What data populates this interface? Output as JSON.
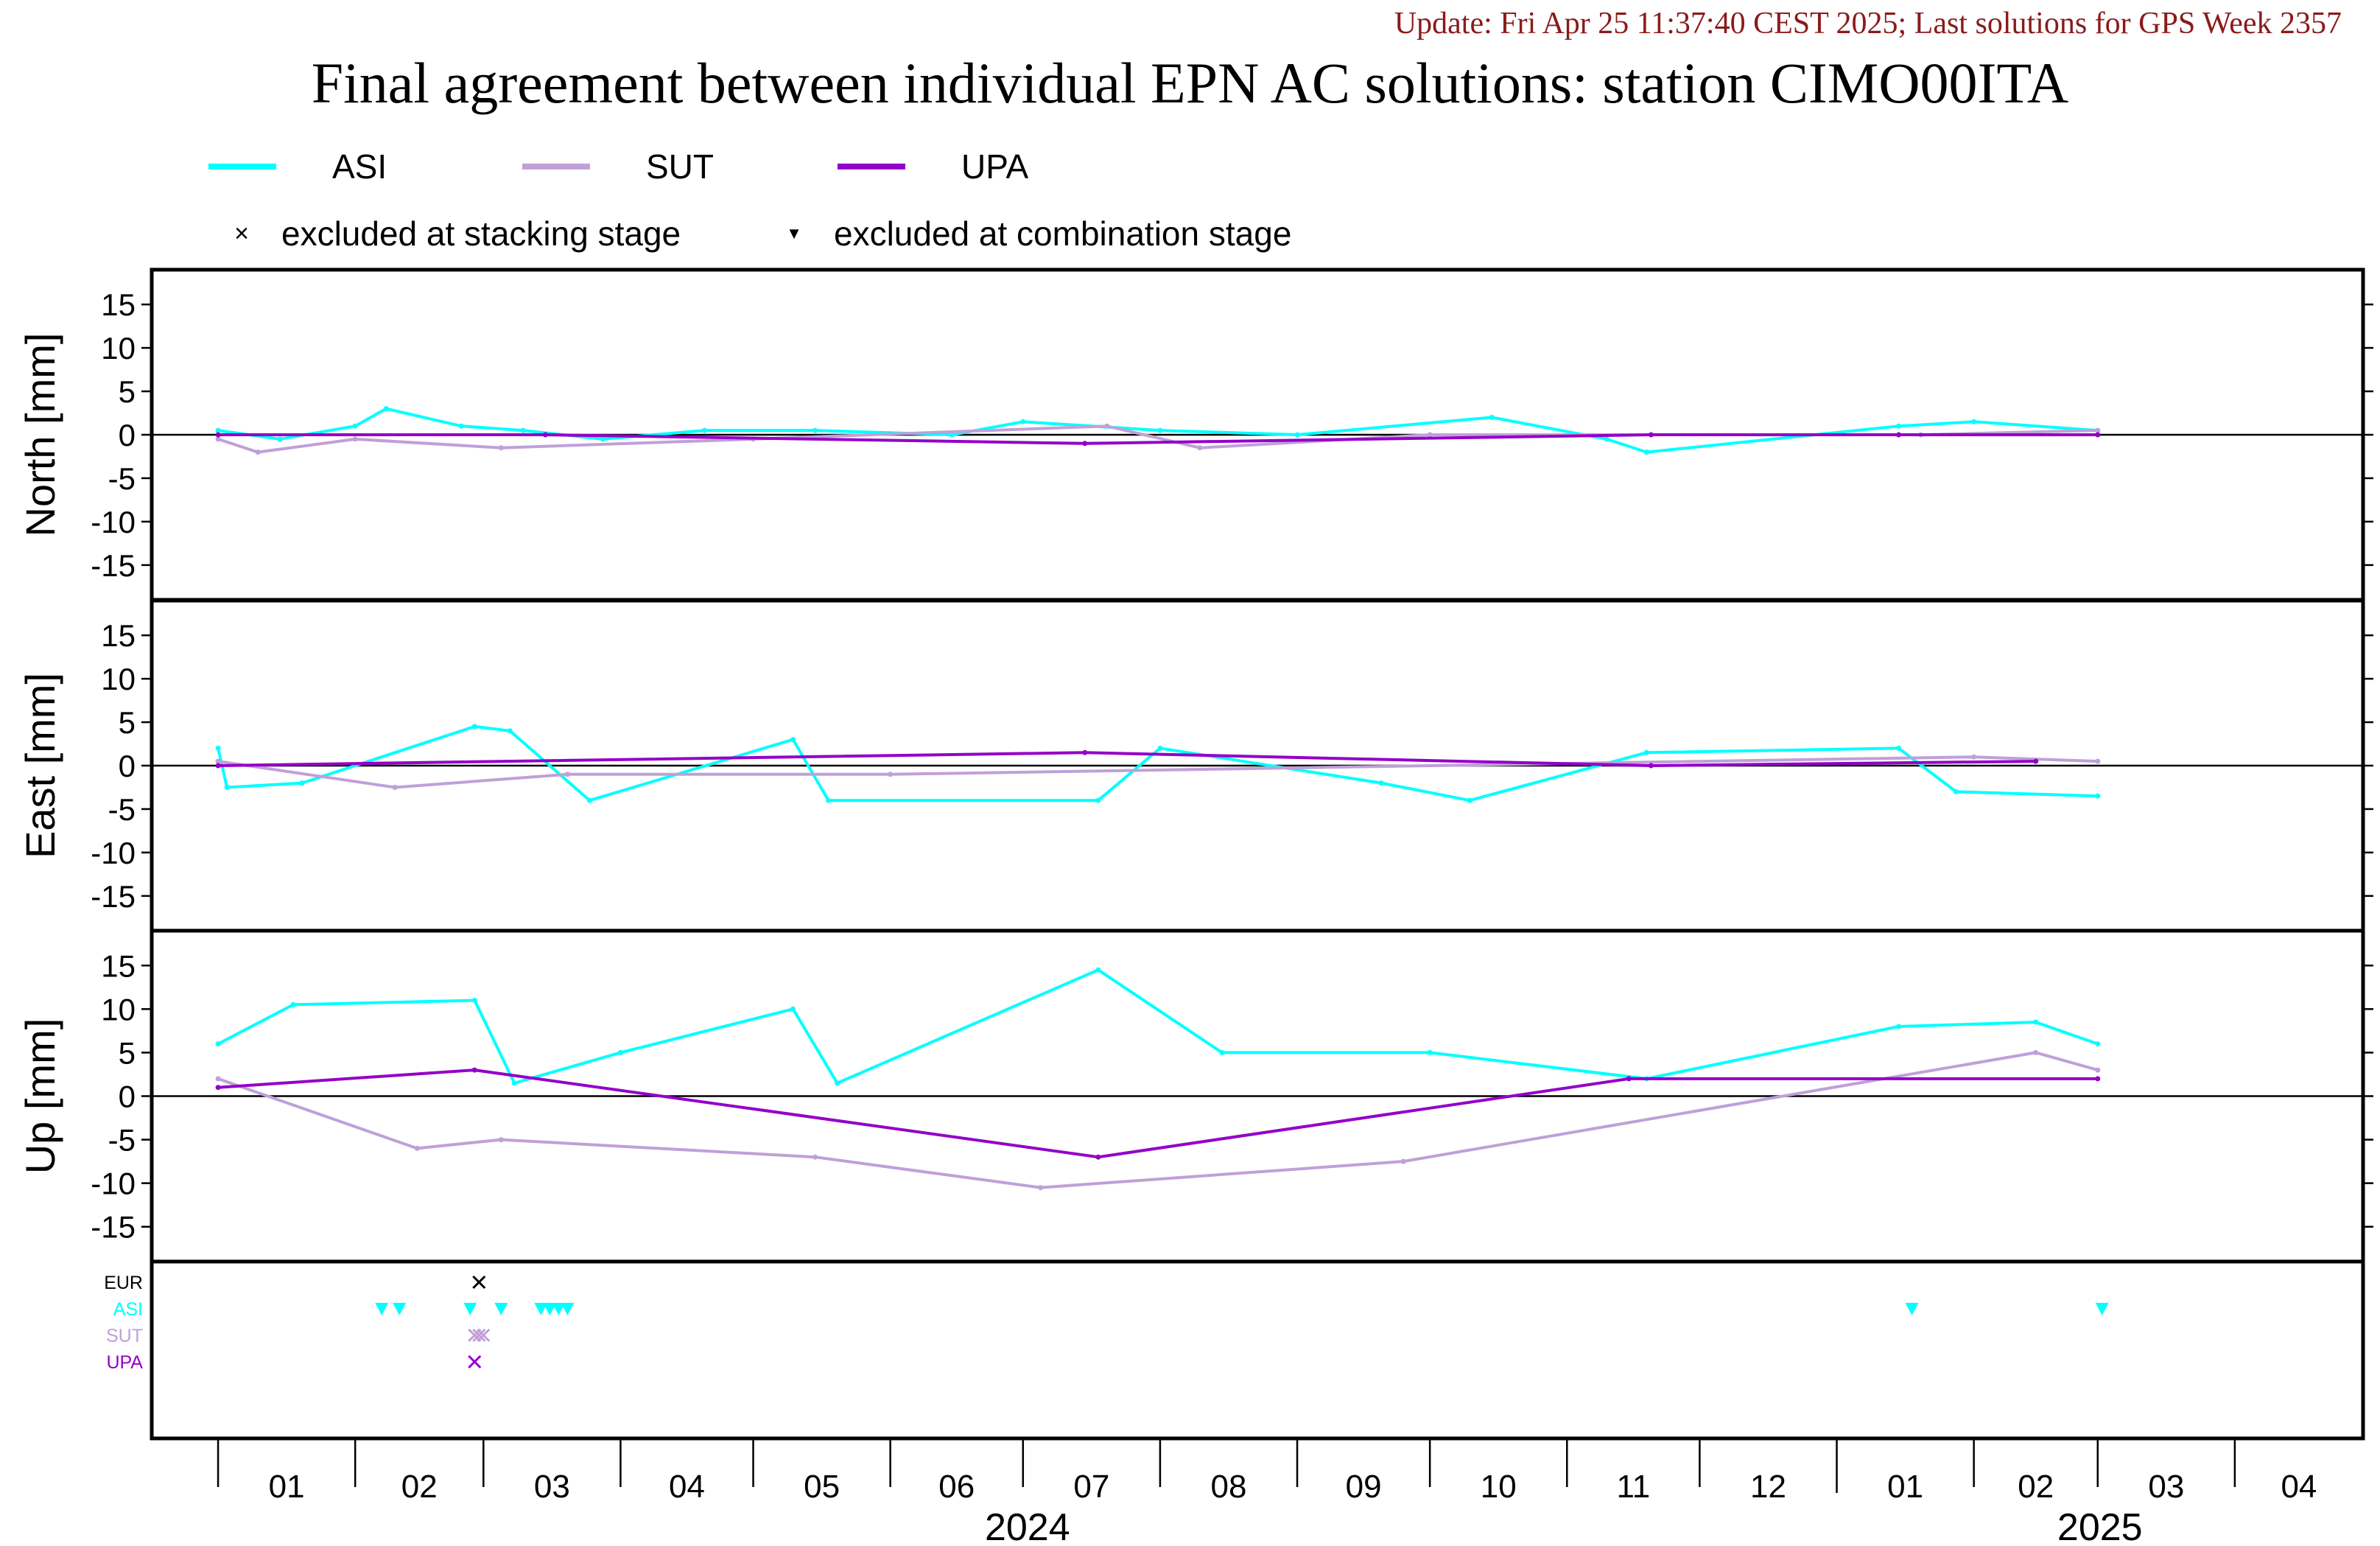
{
  "header": {
    "update_text": "Update: Fri Apr 25 11:37:40 CEST 2025; Last solutions for GPS Week 2357",
    "title": "Final agreement between individual EPN AC solutions: station CIMO00ITA"
  },
  "legend": {
    "series": [
      {
        "name": "ASI",
        "color": "#00ffff"
      },
      {
        "name": "SUT",
        "color": "#c0a0d8"
      },
      {
        "name": "UPA",
        "color": "#9400c8"
      }
    ],
    "markers": [
      {
        "symbol": "×",
        "icon": "x-mark-icon",
        "label": "excluded at stacking stage"
      },
      {
        "symbol": "▼",
        "icon": "triangle-down-icon",
        "label": "excluded at combination stage"
      }
    ]
  },
  "chart_data": {
    "type": "line",
    "x_range": [
      "2023-12-17",
      "2025-04-30"
    ],
    "x_tick_labels": [
      "01",
      "02",
      "03",
      "04",
      "05",
      "06",
      "07",
      "08",
      "09",
      "10",
      "11",
      "12",
      "01",
      "02",
      "03",
      "04"
    ],
    "x_years": [
      "2024",
      "2025"
    ],
    "panels": [
      {
        "ylabel": "North [mm]",
        "ylim": [
          -19,
          19
        ],
        "yticks": [
          15,
          10,
          5,
          0,
          -5,
          -10,
          -15
        ],
        "series": [
          {
            "name": "ASI",
            "color": "#00ffff",
            "values": [
              {
                "date": "2024-01-01",
                "y": 0.5
              },
              {
                "date": "2024-01-15",
                "y": -0.5
              },
              {
                "date": "2024-02-01",
                "y": 1.0
              },
              {
                "date": "2024-02-08",
                "y": 3.0
              },
              {
                "date": "2024-02-25",
                "y": 1.0
              },
              {
                "date": "2024-03-10",
                "y": 0.5
              },
              {
                "date": "2024-03-28",
                "y": -0.5
              },
              {
                "date": "2024-04-20",
                "y": 0.5
              },
              {
                "date": "2024-05-15",
                "y": 0.5
              },
              {
                "date": "2024-06-15",
                "y": 0.0
              },
              {
                "date": "2024-07-01",
                "y": 1.5
              },
              {
                "date": "2024-08-01",
                "y": 0.5
              },
              {
                "date": "2024-09-01",
                "y": 0.0
              },
              {
                "date": "2024-10-15",
                "y": 2.0
              },
              {
                "date": "2024-11-10",
                "y": -0.5
              },
              {
                "date": "2024-11-19",
                "y": -2.0
              },
              {
                "date": "2025-01-15",
                "y": 1.0
              },
              {
                "date": "2025-02-01",
                "y": 1.5
              },
              {
                "date": "2025-03-01",
                "y": 0.5
              }
            ]
          },
          {
            "name": "SUT",
            "color": "#c0a0d8",
            "values": [
              {
                "date": "2024-01-01",
                "y": -0.5
              },
              {
                "date": "2024-01-10",
                "y": -2.0
              },
              {
                "date": "2024-02-01",
                "y": -0.5
              },
              {
                "date": "2024-03-05",
                "y": -1.5
              },
              {
                "date": "2024-05-01",
                "y": -0.5
              },
              {
                "date": "2024-07-20",
                "y": 1.0
              },
              {
                "date": "2024-08-10",
                "y": -1.5
              },
              {
                "date": "2024-10-01",
                "y": 0.0
              },
              {
                "date": "2025-01-20",
                "y": 0.0
              },
              {
                "date": "2025-03-01",
                "y": 0.5
              }
            ]
          },
          {
            "name": "UPA",
            "color": "#9400c8",
            "values": [
              {
                "date": "2024-01-01",
                "y": 0.0
              },
              {
                "date": "2024-03-15",
                "y": 0.0
              },
              {
                "date": "2024-07-15",
                "y": -1.0
              },
              {
                "date": "2024-11-20",
                "y": 0.0
              },
              {
                "date": "2025-01-15",
                "y": 0.0
              },
              {
                "date": "2025-03-01",
                "y": 0.0
              }
            ]
          }
        ]
      },
      {
        "ylabel": "East [mm]",
        "ylim": [
          -19,
          19
        ],
        "yticks": [
          15,
          10,
          5,
          0,
          -5,
          -10,
          -15
        ],
        "series": [
          {
            "name": "ASI",
            "color": "#00ffff",
            "values": [
              {
                "date": "2024-01-01",
                "y": 2.0
              },
              {
                "date": "2024-01-03",
                "y": -2.5
              },
              {
                "date": "2024-01-20",
                "y": -2.0
              },
              {
                "date": "2024-02-28",
                "y": 4.5
              },
              {
                "date": "2024-03-07",
                "y": 4.0
              },
              {
                "date": "2024-03-25",
                "y": -4.0
              },
              {
                "date": "2024-05-10",
                "y": 3.0
              },
              {
                "date": "2024-05-18",
                "y": -4.0
              },
              {
                "date": "2024-07-18",
                "y": -4.0
              },
              {
                "date": "2024-08-01",
                "y": 2.0
              },
              {
                "date": "2024-09-20",
                "y": -2.0
              },
              {
                "date": "2024-10-10",
                "y": -4.0
              },
              {
                "date": "2024-11-19",
                "y": 1.5
              },
              {
                "date": "2025-01-15",
                "y": 2.0
              },
              {
                "date": "2025-01-28",
                "y": -3.0
              },
              {
                "date": "2025-03-01",
                "y": -3.5
              }
            ]
          },
          {
            "name": "SUT",
            "color": "#c0a0d8",
            "values": [
              {
                "date": "2024-01-01",
                "y": 0.5
              },
              {
                "date": "2024-02-10",
                "y": -2.5
              },
              {
                "date": "2024-03-20",
                "y": -1.0
              },
              {
                "date": "2024-06-01",
                "y": -1.0
              },
              {
                "date": "2025-02-01",
                "y": 1.0
              },
              {
                "date": "2025-03-01",
                "y": 0.5
              }
            ]
          },
          {
            "name": "UPA",
            "color": "#9400c8",
            "values": [
              {
                "date": "2024-01-01",
                "y": 0.0
              },
              {
                "date": "2024-07-15",
                "y": 1.5
              },
              {
                "date": "2024-11-20",
                "y": 0.0
              },
              {
                "date": "2025-02-15",
                "y": 0.5
              }
            ]
          }
        ]
      },
      {
        "ylabel": "Up [mm]",
        "ylim": [
          -19,
          19
        ],
        "yticks": [
          15,
          10,
          5,
          0,
          -5,
          -10,
          -15
        ],
        "series": [
          {
            "name": "ASI",
            "color": "#00ffff",
            "values": [
              {
                "date": "2024-01-01",
                "y": 6.0
              },
              {
                "date": "2024-01-18",
                "y": 10.5
              },
              {
                "date": "2024-02-28",
                "y": 11.0
              },
              {
                "date": "2024-03-08",
                "y": 1.5
              },
              {
                "date": "2024-04-01",
                "y": 5.0
              },
              {
                "date": "2024-05-10",
                "y": 10.0
              },
              {
                "date": "2024-05-20",
                "y": 1.5
              },
              {
                "date": "2024-07-18",
                "y": 14.5
              },
              {
                "date": "2024-08-15",
                "y": 5.0
              },
              {
                "date": "2024-10-01",
                "y": 5.0
              },
              {
                "date": "2024-11-19",
                "y": 2.0
              },
              {
                "date": "2025-01-15",
                "y": 8.0
              },
              {
                "date": "2025-02-15",
                "y": 8.5
              },
              {
                "date": "2025-03-01",
                "y": 6.0
              }
            ]
          },
          {
            "name": "SUT",
            "color": "#c0a0d8",
            "values": [
              {
                "date": "2024-01-01",
                "y": 2.0
              },
              {
                "date": "2024-02-15",
                "y": -6.0
              },
              {
                "date": "2024-03-05",
                "y": -5.0
              },
              {
                "date": "2024-05-15",
                "y": -7.0
              },
              {
                "date": "2024-07-05",
                "y": -10.5
              },
              {
                "date": "2024-09-25",
                "y": -7.5
              },
              {
                "date": "2025-02-15",
                "y": 5.0
              },
              {
                "date": "2025-03-01",
                "y": 3.0
              }
            ]
          },
          {
            "name": "UPA",
            "color": "#9400c8",
            "values": [
              {
                "date": "2024-01-01",
                "y": 1.0
              },
              {
                "date": "2024-02-28",
                "y": 3.0
              },
              {
                "date": "2024-07-18",
                "y": -7.0
              },
              {
                "date": "2024-11-15",
                "y": 2.0
              },
              {
                "date": "2025-03-01",
                "y": 2.0
              }
            ]
          }
        ]
      }
    ],
    "exclusions": {
      "rows": [
        {
          "name": "EUR",
          "color": "#000000"
        },
        {
          "name": "ASI",
          "color": "#00ffff"
        },
        {
          "name": "SUT",
          "color": "#c0a0d8"
        },
        {
          "name": "UPA",
          "color": "#9400c8"
        }
      ],
      "items": [
        {
          "row": "EUR",
          "marker": "×",
          "dates": [
            "2024-02-29"
          ]
        },
        {
          "row": "ASI",
          "marker": "▼",
          "dates": [
            "2024-02-07",
            "2024-02-11",
            "2024-02-27",
            "2024-03-05",
            "2024-03-14",
            "2024-03-16",
            "2024-03-18",
            "2024-03-20",
            "2025-01-18",
            "2025-03-02"
          ]
        },
        {
          "row": "SUT",
          "marker": "×",
          "dates": [
            "2024-02-28",
            "2024-02-29",
            "2024-03-01"
          ]
        },
        {
          "row": "UPA",
          "marker": "×",
          "dates": [
            "2024-02-28"
          ]
        }
      ]
    }
  }
}
